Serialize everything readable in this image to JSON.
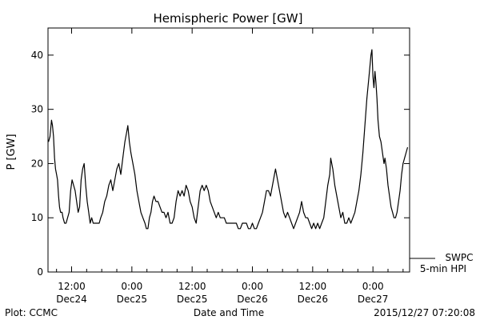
{
  "chart_data": {
    "type": "line",
    "title": "Hemispheric Power [GW]",
    "ylabel": "P [GW]",
    "xlabel": "Date and Time",
    "ylim": [
      0,
      45
    ],
    "y_ticks": [
      0,
      10,
      20,
      30,
      40
    ],
    "x_ticks": [
      {
        "time": "12:00",
        "date": "Dec24",
        "hours": 12
      },
      {
        "time": "0:00",
        "date": "Dec25",
        "hours": 24
      },
      {
        "time": "12:00",
        "date": "Dec25",
        "hours": 36
      },
      {
        "time": "0:00",
        "date": "Dec26",
        "hours": 48
      },
      {
        "time": "12:00",
        "date": "Dec26",
        "hours": 60
      },
      {
        "time": "0:00",
        "date": "Dec27",
        "hours": 72
      }
    ],
    "xlim_hours": [
      7.3,
      79.3
    ],
    "legend": {
      "placement": "bottom-right",
      "source": "SWPC",
      "series": "5-min HPI"
    },
    "series": [
      {
        "name": "SWPC 5-min HPI",
        "points": [
          [
            7.4,
            24
          ],
          [
            7.7,
            25
          ],
          [
            8.0,
            28
          ],
          [
            8.2,
            27
          ],
          [
            8.4,
            25
          ],
          [
            8.6,
            21
          ],
          [
            8.8,
            19
          ],
          [
            9.0,
            18
          ],
          [
            9.2,
            17
          ],
          [
            9.4,
            14
          ],
          [
            9.6,
            12
          ],
          [
            9.8,
            11
          ],
          [
            10.1,
            11
          ],
          [
            10.3,
            10
          ],
          [
            10.6,
            9
          ],
          [
            10.9,
            9
          ],
          [
            11.2,
            10
          ],
          [
            11.5,
            11
          ],
          [
            11.8,
            15
          ],
          [
            12.1,
            17
          ],
          [
            12.4,
            16
          ],
          [
            12.7,
            15
          ],
          [
            13.0,
            13
          ],
          [
            13.3,
            11
          ],
          [
            13.6,
            12
          ],
          [
            13.9,
            17
          ],
          [
            14.2,
            19
          ],
          [
            14.5,
            20
          ],
          [
            14.8,
            16
          ],
          [
            15.1,
            13
          ],
          [
            15.4,
            11
          ],
          [
            15.7,
            9
          ],
          [
            16.0,
            10
          ],
          [
            16.3,
            9
          ],
          [
            16.6,
            9
          ],
          [
            16.9,
            9
          ],
          [
            17.2,
            9
          ],
          [
            17.5,
            9
          ],
          [
            17.8,
            10
          ],
          [
            18.2,
            11
          ],
          [
            18.6,
            13
          ],
          [
            19.0,
            14
          ],
          [
            19.4,
            16
          ],
          [
            19.8,
            17
          ],
          [
            20.2,
            15
          ],
          [
            20.6,
            17
          ],
          [
            21.0,
            19
          ],
          [
            21.4,
            20
          ],
          [
            21.8,
            18
          ],
          [
            22.2,
            21
          ],
          [
            22.6,
            24
          ],
          [
            23.0,
            26
          ],
          [
            23.2,
            27
          ],
          [
            23.5,
            24
          ],
          [
            23.8,
            22
          ],
          [
            24.2,
            20
          ],
          [
            24.6,
            18
          ],
          [
            25.0,
            15
          ],
          [
            25.4,
            13
          ],
          [
            25.8,
            11
          ],
          [
            26.2,
            10
          ],
          [
            26.6,
            9
          ],
          [
            26.9,
            8
          ],
          [
            27.2,
            8
          ],
          [
            27.5,
            10
          ],
          [
            27.8,
            11
          ],
          [
            28.1,
            13
          ],
          [
            28.4,
            14
          ],
          [
            28.8,
            13
          ],
          [
            29.2,
            13
          ],
          [
            29.6,
            12
          ],
          [
            30.0,
            11
          ],
          [
            30.4,
            11
          ],
          [
            30.8,
            10
          ],
          [
            31.2,
            11
          ],
          [
            31.6,
            9
          ],
          [
            32.0,
            9
          ],
          [
            32.4,
            10
          ],
          [
            32.8,
            13
          ],
          [
            33.2,
            15
          ],
          [
            33.6,
            14
          ],
          [
            34.0,
            15
          ],
          [
            34.4,
            14
          ],
          [
            34.8,
            16
          ],
          [
            35.2,
            15
          ],
          [
            35.6,
            13
          ],
          [
            36.0,
            12
          ],
          [
            36.4,
            10
          ],
          [
            36.8,
            9
          ],
          [
            37.2,
            12
          ],
          [
            37.6,
            15
          ],
          [
            38.0,
            16
          ],
          [
            38.4,
            15
          ],
          [
            38.8,
            16
          ],
          [
            39.2,
            15
          ],
          [
            39.6,
            13
          ],
          [
            40.0,
            12
          ],
          [
            40.4,
            11
          ],
          [
            40.8,
            10
          ],
          [
            41.2,
            11
          ],
          [
            41.6,
            10
          ],
          [
            42.0,
            10
          ],
          [
            42.4,
            10
          ],
          [
            42.8,
            9
          ],
          [
            43.2,
            9
          ],
          [
            43.6,
            9
          ],
          [
            44.0,
            9
          ],
          [
            44.4,
            9
          ],
          [
            44.8,
            9
          ],
          [
            45.2,
            8
          ],
          [
            45.6,
            8
          ],
          [
            46.0,
            9
          ],
          [
            46.4,
            9
          ],
          [
            46.8,
            9
          ],
          [
            47.2,
            8
          ],
          [
            47.6,
            8
          ],
          [
            48.0,
            9
          ],
          [
            48.4,
            8
          ],
          [
            48.8,
            8
          ],
          [
            49.2,
            9
          ],
          [
            49.6,
            10
          ],
          [
            50.0,
            11
          ],
          [
            50.4,
            13
          ],
          [
            50.8,
            15
          ],
          [
            51.2,
            15
          ],
          [
            51.6,
            14
          ],
          [
            52.0,
            16
          ],
          [
            52.4,
            18
          ],
          [
            52.6,
            19
          ],
          [
            53.0,
            17
          ],
          [
            53.4,
            15
          ],
          [
            53.8,
            13
          ],
          [
            54.2,
            11
          ],
          [
            54.6,
            10
          ],
          [
            55.0,
            11
          ],
          [
            55.4,
            10
          ],
          [
            55.8,
            9
          ],
          [
            56.2,
            8
          ],
          [
            56.6,
            9
          ],
          [
            57.0,
            10
          ],
          [
            57.4,
            11
          ],
          [
            57.8,
            13
          ],
          [
            58.2,
            11
          ],
          [
            58.6,
            10
          ],
          [
            59.0,
            10
          ],
          [
            59.4,
            9
          ],
          [
            59.8,
            8
          ],
          [
            60.2,
            9
          ],
          [
            60.6,
            8
          ],
          [
            61.0,
            9
          ],
          [
            61.4,
            8
          ],
          [
            61.8,
            9
          ],
          [
            62.2,
            10
          ],
          [
            62.6,
            13
          ],
          [
            63.0,
            16
          ],
          [
            63.4,
            18
          ],
          [
            63.6,
            21
          ],
          [
            64.0,
            19
          ],
          [
            64.4,
            16
          ],
          [
            64.8,
            14
          ],
          [
            65.2,
            12
          ],
          [
            65.6,
            10
          ],
          [
            66.0,
            11
          ],
          [
            66.4,
            9
          ],
          [
            66.8,
            9
          ],
          [
            67.2,
            10
          ],
          [
            67.6,
            9
          ],
          [
            68.0,
            10
          ],
          [
            68.4,
            11
          ],
          [
            68.8,
            13
          ],
          [
            69.2,
            15
          ],
          [
            69.6,
            18
          ],
          [
            70.0,
            22
          ],
          [
            70.4,
            27
          ],
          [
            70.8,
            32
          ],
          [
            71.2,
            36
          ],
          [
            71.6,
            40
          ],
          [
            71.8,
            41
          ],
          [
            72.0,
            36
          ],
          [
            72.2,
            34
          ],
          [
            72.4,
            37
          ],
          [
            72.6,
            35
          ],
          [
            72.8,
            32
          ],
          [
            73.0,
            28
          ],
          [
            73.3,
            25
          ],
          [
            73.6,
            24
          ],
          [
            73.9,
            22
          ],
          [
            74.2,
            20
          ],
          [
            74.4,
            21
          ],
          [
            74.7,
            19
          ],
          [
            75.0,
            16
          ],
          [
            75.3,
            14
          ],
          [
            75.6,
            12
          ],
          [
            75.9,
            11
          ],
          [
            76.2,
            10
          ],
          [
            76.5,
            10
          ],
          [
            76.8,
            11
          ],
          [
            77.1,
            13
          ],
          [
            77.4,
            15
          ],
          [
            77.7,
            18
          ],
          [
            78.0,
            20
          ],
          [
            78.3,
            21
          ],
          [
            78.6,
            22
          ],
          [
            78.9,
            23
          ]
        ]
      }
    ]
  },
  "footer": {
    "plot_credit": "Plot: CCMC",
    "timestamp": "2015/12/27 07:20:08"
  },
  "colors": {
    "line": "#000000",
    "background": "#ffffff"
  }
}
